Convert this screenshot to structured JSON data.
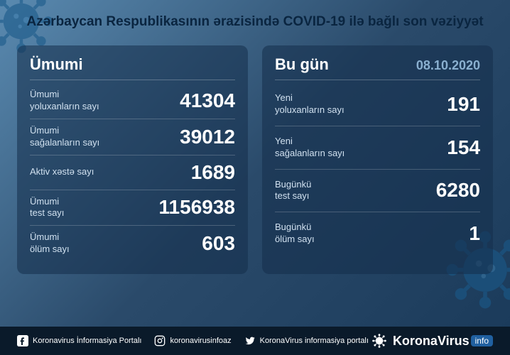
{
  "title": "Azərbaycan Respublikasının ərazisində COVID-19 ilə bağlı son vəziyyət",
  "colors": {
    "bg_gradient_start": "#5a8ab0",
    "bg_gradient_mid": "#2a4a6a",
    "bg_gradient_end": "#1a3a5a",
    "panel_bg": "rgba(20,45,75,0.55)",
    "title_color": "#0a2540",
    "text_white": "#ffffff",
    "label_color": "#d0e0ef",
    "date_color": "#8ab0d0",
    "footer_bg": "#0a1a2a",
    "virus_color": "#1a5a8a"
  },
  "left_panel": {
    "title": "Ümumi",
    "rows": [
      {
        "label": "Ümumi\nyoluxanların sayı",
        "value": "41304"
      },
      {
        "label": "Ümumi\nsağalanların sayı",
        "value": "39012"
      },
      {
        "label": "Aktiv xəstə sayı",
        "value": "1689"
      },
      {
        "label": "Ümumi\ntest sayı",
        "value": "1156938"
      },
      {
        "label": "Ümumi\nölüm sayı",
        "value": "603"
      }
    ]
  },
  "right_panel": {
    "title": "Bu gün",
    "date": "08.10.2020",
    "rows": [
      {
        "label": "Yeni\nyoluxanların sayı",
        "value": "191"
      },
      {
        "label": "Yeni\nsağalanların sayı",
        "value": "154"
      },
      {
        "label": "Bugünkü\ntest sayı",
        "value": "6280"
      },
      {
        "label": "Bugünkü\nölüm sayı",
        "value": "1"
      }
    ]
  },
  "footer": {
    "facebook": "Koronavirus İnformasiya Portalı",
    "instagram": "koronavirusinfoaz",
    "twitter": "KoronaVirus informasiya portalı",
    "brand": "KoronaVirus",
    "badge": "info"
  }
}
